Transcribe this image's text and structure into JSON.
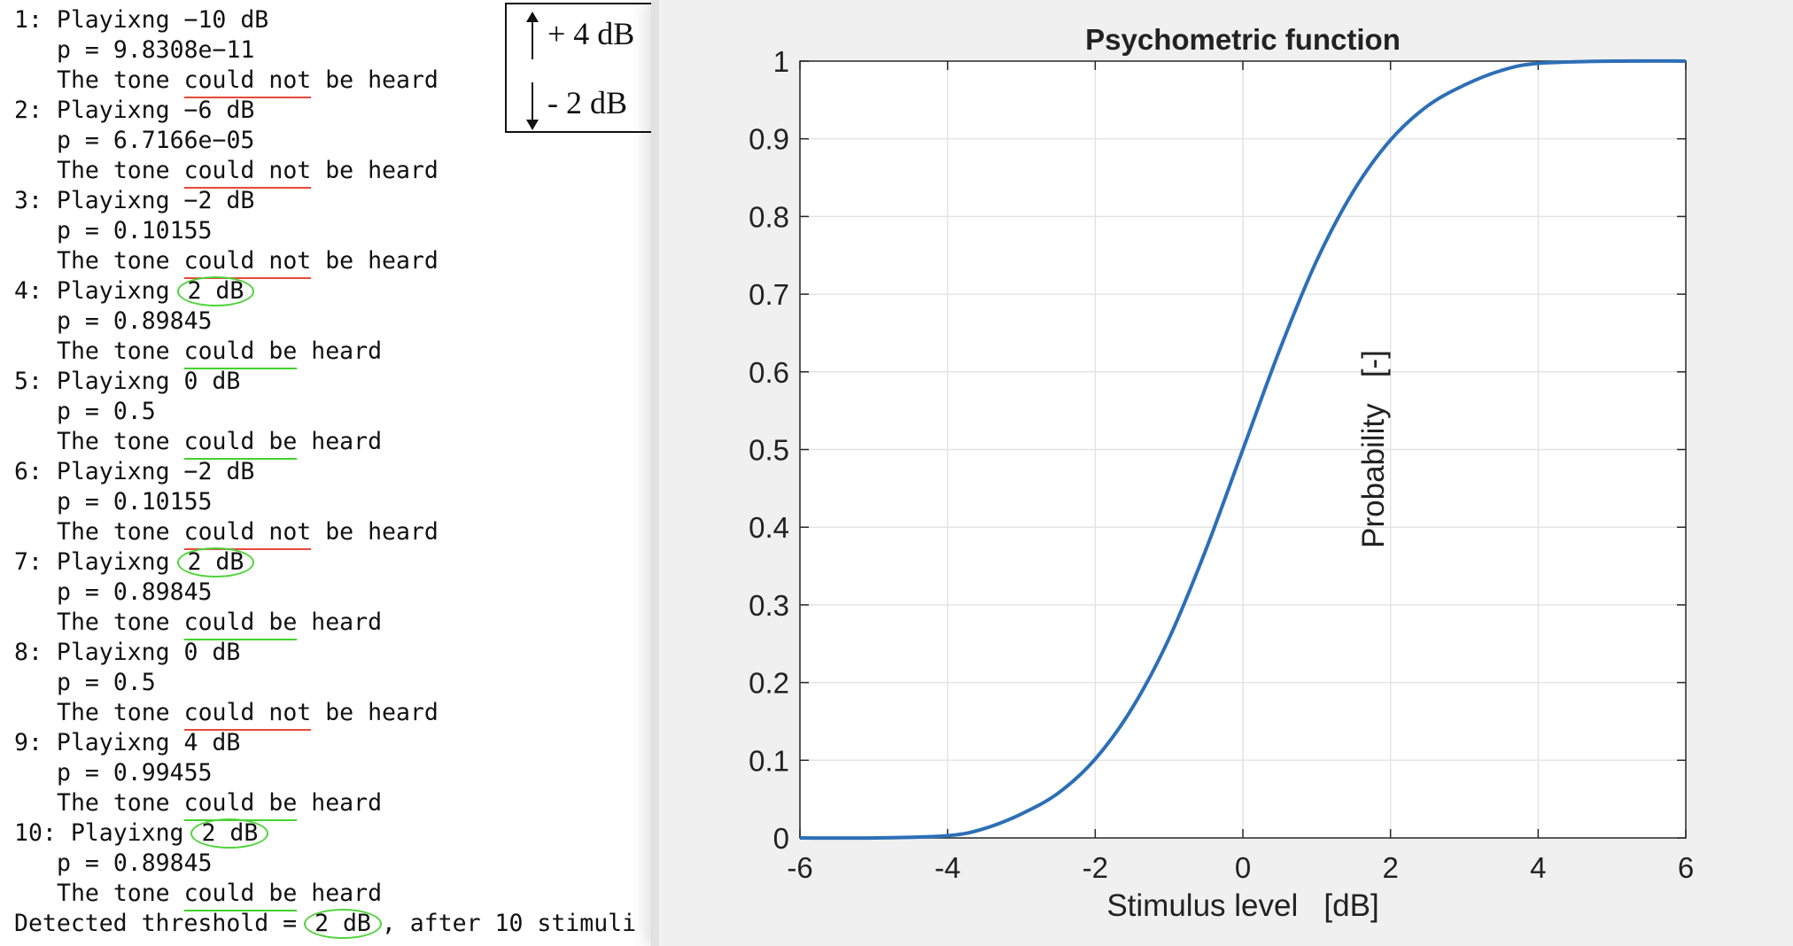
{
  "console": {
    "lines": [
      {
        "kind": "play",
        "num": "1:",
        "word": "Playixng",
        "level": "−10 dB",
        "circled": false
      },
      {
        "kind": "p",
        "text": "p = 9.8308e−11"
      },
      {
        "kind": "result",
        "heard": false
      },
      {
        "kind": "play",
        "num": "2:",
        "word": "Playixng",
        "level": "−6 dB",
        "circled": false
      },
      {
        "kind": "p",
        "text": "p = 6.7166e−05"
      },
      {
        "kind": "result",
        "heard": false
      },
      {
        "kind": "play",
        "num": "3:",
        "word": "Playixng",
        "level": "−2 dB",
        "circled": false
      },
      {
        "kind": "p",
        "text": "p = 0.10155"
      },
      {
        "kind": "result",
        "heard": false
      },
      {
        "kind": "play",
        "num": "4:",
        "word": "Playixng",
        "level": "2 dB",
        "circled": true
      },
      {
        "kind": "p",
        "text": "p = 0.89845"
      },
      {
        "kind": "result",
        "heard": true
      },
      {
        "kind": "play",
        "num": "5:",
        "word": "Playixng",
        "level": "0 dB",
        "circled": false
      },
      {
        "kind": "p",
        "text": "p = 0.5"
      },
      {
        "kind": "result",
        "heard": true
      },
      {
        "kind": "play",
        "num": "6:",
        "word": "Playixng",
        "level": "−2 dB",
        "circled": false
      },
      {
        "kind": "p",
        "text": "p = 0.10155"
      },
      {
        "kind": "result",
        "heard": false
      },
      {
        "kind": "play",
        "num": "7:",
        "word": "Playixng",
        "level": "2 dB",
        "circled": true
      },
      {
        "kind": "p",
        "text": "p = 0.89845"
      },
      {
        "kind": "result",
        "heard": true
      },
      {
        "kind": "play",
        "num": "8:",
        "word": "Playixng",
        "level": "0 dB",
        "circled": false
      },
      {
        "kind": "p",
        "text": "p = 0.5"
      },
      {
        "kind": "result",
        "heard": false
      },
      {
        "kind": "play",
        "num": "9:",
        "word": "Playixng",
        "level": "4 dB",
        "circled": false
      },
      {
        "kind": "p",
        "text": "p = 0.99455"
      },
      {
        "kind": "result",
        "heard": true
      },
      {
        "kind": "play",
        "num": "10:",
        "word": "Playixng",
        "level": "2 dB",
        "circled": true
      },
      {
        "kind": "p",
        "text": "p = 0.89845"
      },
      {
        "kind": "result",
        "heard": true
      },
      {
        "kind": "final",
        "prefix": "Detected threshold =",
        "level": "2 dB",
        "suffix": ", after 10 stimuli"
      }
    ],
    "result_words": {
      "the": "The tone",
      "could": "could",
      "not": "not",
      "be": "be",
      "heard": "heard"
    },
    "colors": {
      "not_heard_underline": "#e8483a",
      "heard_underline": "#45d12f",
      "circle": "#4fd43a"
    }
  },
  "rule_box": {
    "up_label": "+ 4 dB",
    "down_label": "- 2 dB",
    "up_icon": "arrow-up-icon",
    "down_icon": "arrow-down-icon"
  },
  "chart_data": {
    "type": "line",
    "title": "Psychometric function",
    "xlabel": "Stimulus level   [dB]",
    "ylabel": "Probability   [-]",
    "xlim": [
      -6,
      6
    ],
    "ylim": [
      0,
      1
    ],
    "xticks": [
      "-6",
      "-4",
      "-2",
      "0",
      "2",
      "4",
      "6"
    ],
    "xtick_values": [
      -6,
      -4,
      -2,
      0,
      2,
      4,
      6
    ],
    "yticks": [
      "0",
      "0.1",
      "0.2",
      "0.3",
      "0.4",
      "0.5",
      "0.6",
      "0.7",
      "0.8",
      "0.9",
      "1"
    ],
    "ytick_values": [
      0,
      0.1,
      0.2,
      0.3,
      0.4,
      0.5,
      0.6,
      0.7,
      0.8,
      0.9,
      1
    ],
    "grid": true,
    "series": [
      {
        "color": "#2c6fb6",
        "x": [
          -6,
          -5,
          -4,
          -3.5,
          -3,
          -2.5,
          -2,
          -1.5,
          -1,
          -0.5,
          0,
          0.5,
          1,
          1.5,
          2,
          2.5,
          3,
          3.5,
          4,
          5,
          6
        ],
        "y": [
          0.0,
          0.0,
          0.0029,
          0.0121,
          0.0309,
          0.0578,
          0.1016,
          0.1671,
          0.2568,
          0.3713,
          0.5,
          0.6287,
          0.7432,
          0.8329,
          0.8984,
          0.9422,
          0.9691,
          0.9879,
          0.9971,
          1.0,
          1.0
        ]
      }
    ]
  }
}
